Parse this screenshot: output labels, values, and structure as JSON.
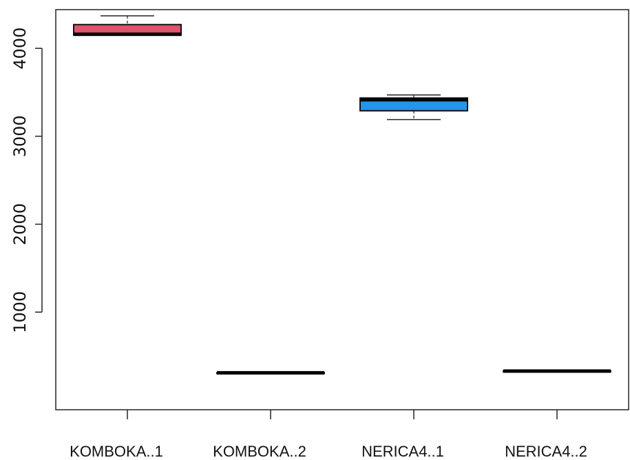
{
  "chart_data": {
    "type": "boxplot",
    "title": "",
    "xlabel": "",
    "ylabel": "",
    "ylim": [
      -110,
      4440
    ],
    "yticks": [
      1000,
      2000,
      3000,
      4000
    ],
    "ytick_labels": [
      "1000",
      "2000",
      "3000",
      "4000"
    ],
    "grid": false,
    "legend": "none",
    "categories": [
      "KOMBOKA..1",
      "KOMBOKA..2",
      "NERICA4..1",
      "NERICA4..2"
    ],
    "boxes": [
      {
        "category": "KOMBOKA..1",
        "whisker_low": 4150,
        "q1": 4150,
        "median": 4160,
        "q3": 4270,
        "whisker_high": 4370,
        "color": "#DF536B"
      },
      {
        "category": "KOMBOKA..2",
        "whisker_low": 310,
        "q1": 310,
        "median": 310,
        "q3": 310,
        "whisker_high": 310,
        "color": "#61D04F"
      },
      {
        "category": "NERICA4..1",
        "whisker_low": 3190,
        "q1": 3290,
        "median": 3415,
        "q3": 3435,
        "whisker_high": 3470,
        "color": "#2297E6"
      },
      {
        "category": "NERICA4..2",
        "whisker_low": 330,
        "q1": 330,
        "median": 330,
        "q3": 330,
        "whisker_high": 330,
        "color": "#28E2E5"
      }
    ]
  }
}
